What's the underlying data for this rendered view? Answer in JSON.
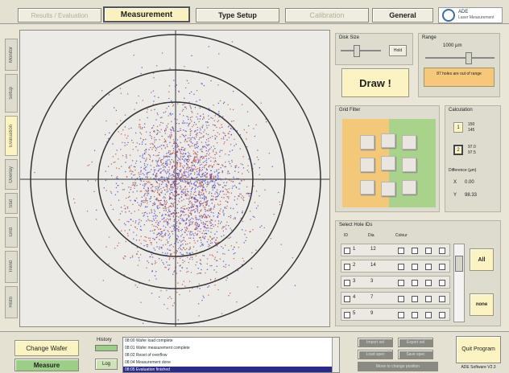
{
  "tabs": [
    "Results / Evaluation",
    "Measurement",
    "Type Setup",
    "Calibration",
    "General"
  ],
  "logo": {
    "text": "ADE",
    "sub": "Laser Measurement"
  },
  "side_tabs": [
    "Monitor",
    "Setup",
    "Evaluation",
    "Overlay",
    "Stat",
    "Grid",
    "Trend",
    "Histo"
  ],
  "disc_size": {
    "title": "Disk Size",
    "button": "Hold"
  },
  "range": {
    "title": "Range",
    "value": "1000 µm",
    "warning": "87 holes are out of range"
  },
  "draw_button": "Draw !",
  "grid_filter": {
    "title": "Grid Filter"
  },
  "calculation": {
    "title": "Calculation",
    "row1": {
      "btn": "1",
      "a": "150",
      "b": "145"
    },
    "row2": {
      "btn": "2",
      "a": "97.0",
      "b": "97.5"
    },
    "diff_title": "Difference (µm)",
    "x_label": "X",
    "x_value": "0.00",
    "y_label": "Y",
    "y_value": "98.33"
  },
  "select_holes": {
    "title": "Select Hole IDs",
    "headers": [
      "ID",
      "Dia",
      "Colour"
    ],
    "rows": [
      {
        "id": "1",
        "dia": "12"
      },
      {
        "id": "2",
        "dia": "14"
      },
      {
        "id": "3",
        "dia": "3"
      },
      {
        "id": "4",
        "dia": "7"
      },
      {
        "id": "5",
        "dia": "9"
      }
    ],
    "all_button": "All",
    "none_button": "none"
  },
  "bottom": {
    "change_wafer": "Change Wafer",
    "measure": "Measure",
    "history_label": "History",
    "log_button": "Log",
    "log_lines": [
      "08:00 Wafer load complete",
      "08:01 Wafer measurement complete",
      "08:02 Reset of overflow",
      "08:04 Measurement done",
      "08:05 Evaluation finished"
    ],
    "small_buttons": [
      "Import sel",
      "Export sel",
      "Load spec",
      "Save spec"
    ],
    "status": "Move to change position",
    "quit": "Quit Program",
    "version": "ADE Software V2.3"
  },
  "colors": {
    "red": "#c0442a",
    "blue": "#3b3cc8",
    "orange_grid": "#f3c878",
    "green_grid": "#a9d28a"
  }
}
